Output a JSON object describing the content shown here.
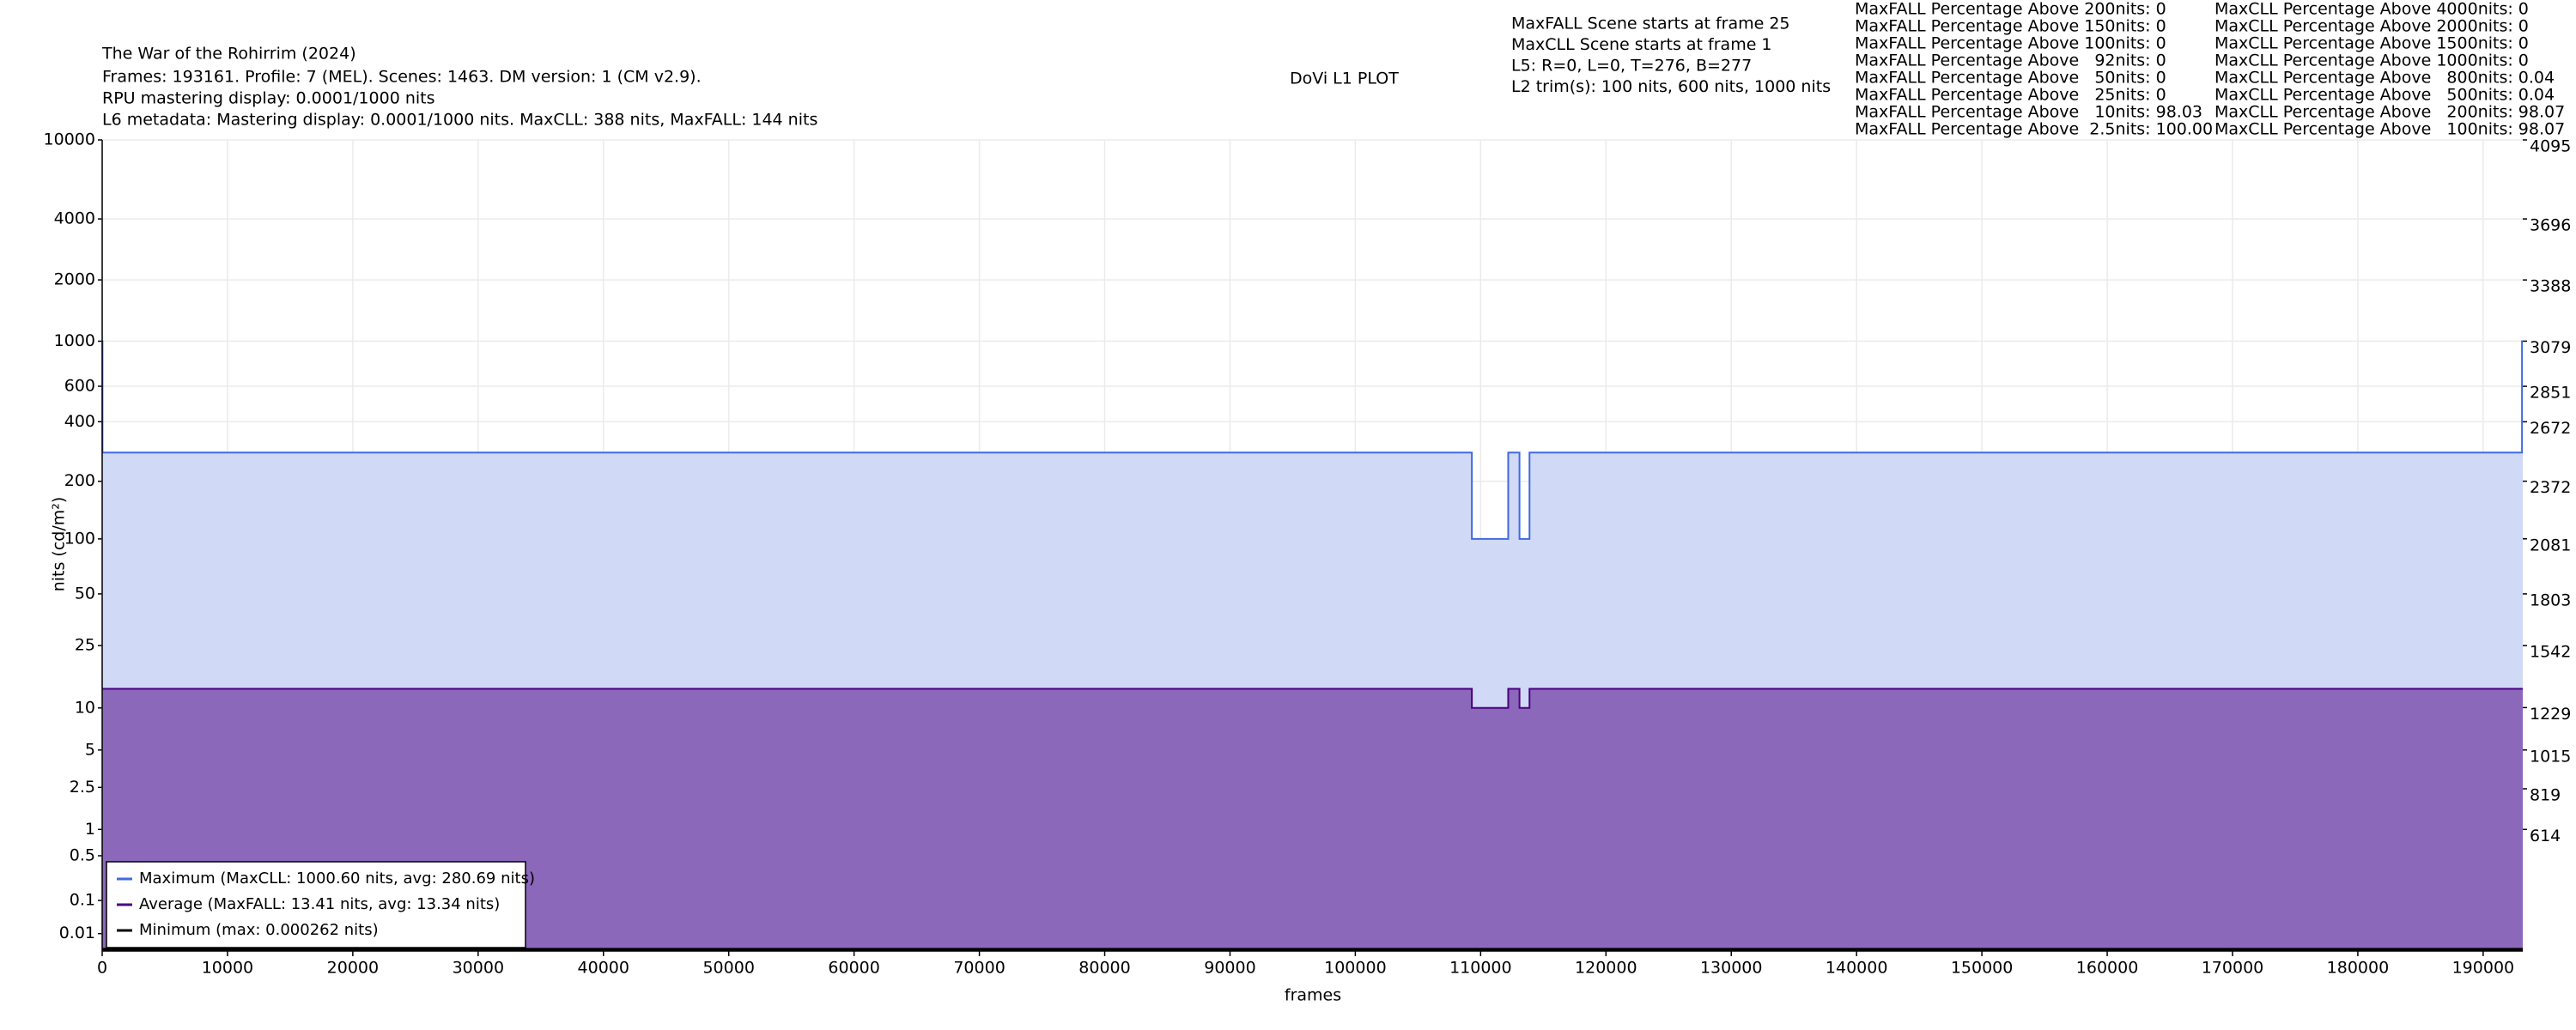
{
  "chart_data": {
    "type": "line",
    "title": "The War of the Rohirrim (2024)",
    "info_lines": [
      "Frames: 193161. Profile: 7 (MEL). Scenes: 1463. DM version: 1 (CM v2.9).",
      "RPU mastering display: 0.0001/1000 nits",
      "L6 metadata: Mastering display: 0.0001/1000 nits. MaxCLL: 388 nits, MaxFALL: 144 nits"
    ],
    "plot_title": "DoVi L1 PLOT",
    "scene_info": [
      "MaxFALL Scene starts at frame 25",
      "MaxCLL Scene starts at frame 1",
      "L5: R=0, L=0, T=276, B=277",
      "L2 trim(s): 100 nits, 600 nits, 1000 nits"
    ],
    "stats_maxfall": [
      "MaxFALL Percentage Above 200nits: 0",
      "MaxFALL Percentage Above 150nits: 0",
      "MaxFALL Percentage Above 100nits: 0",
      "MaxFALL Percentage Above   92nits: 0",
      "MaxFALL Percentage Above   50nits: 0",
      "MaxFALL Percentage Above   25nits: 0",
      "MaxFALL Percentage Above   10nits: 98.03",
      "MaxFALL Percentage Above  2.5nits: 100.00"
    ],
    "stats_maxcll": [
      "MaxCLL Percentage Above 4000nits: 0",
      "MaxCLL Percentage Above 2000nits: 0",
      "MaxCLL Percentage Above 1500nits: 0",
      "MaxCLL Percentage Above 1000nits: 0",
      "MaxCLL Percentage Above   800nits: 0.04",
      "MaxCLL Percentage Above   500nits: 0.04",
      "MaxCLL Percentage Above   200nits: 98.07",
      "MaxCLL Percentage Above   100nits: 98.07"
    ],
    "xlabel": "frames",
    "ylabel": "nits (cd/m²)",
    "yscale": "pq",
    "xlim": [
      0,
      193161
    ],
    "xticks": [
      0,
      10000,
      20000,
      30000,
      40000,
      50000,
      60000,
      70000,
      80000,
      90000,
      100000,
      110000,
      120000,
      130000,
      140000,
      150000,
      160000,
      170000,
      180000,
      190000
    ],
    "ylim": [
      0,
      10000
    ],
    "yticks": [
      10000,
      4000,
      2000,
      1000,
      600,
      400,
      200,
      100,
      50,
      25,
      10,
      5,
      2.5,
      1,
      0.5,
      0.1,
      0.01
    ],
    "y2lim": [
      0,
      4095
    ],
    "y2ticks": [
      4095,
      3696,
      3388,
      3079,
      2851,
      2672,
      2372,
      2081,
      1803,
      1542,
      1229,
      1015,
      819,
      614
    ],
    "grid": true,
    "legend": "lower left",
    "x": [
      0,
      25,
      25,
      109300,
      109300,
      112200,
      112200,
      113100,
      113100,
      113900,
      113900,
      193100,
      193100,
      193161
    ],
    "series": [
      {
        "name": "Maximum (MaxCLL: 1000.60 nits, avg: 280.69 nits)",
        "color": "#4169e1",
        "fill": "#d0d9f5",
        "values": [
          1000.6,
          1000.6,
          280,
          280,
          100,
          100,
          280,
          280,
          100,
          100,
          280,
          280,
          1000.6,
          1000.6
        ]
      },
      {
        "name": "Average (MaxFALL: 13.41 nits, avg: 13.34 nits)",
        "color": "#4b0082",
        "fill": "#8c68bb",
        "values": [
          13.4,
          13.4,
          13.4,
          13.4,
          10,
          10,
          13.4,
          13.4,
          10,
          10,
          13.4,
          13.4,
          13.4,
          13.4
        ]
      },
      {
        "name": "Minimum (max: 0.000262 nits)",
        "color": "#000000",
        "values": [
          0.0001,
          0.0001,
          0.0001,
          0.0001,
          0.0001,
          0.0001,
          0.0001,
          0.0001,
          0.0001,
          0.0001,
          0.0001,
          0.0001,
          0.0001,
          0.0001
        ]
      }
    ]
  }
}
